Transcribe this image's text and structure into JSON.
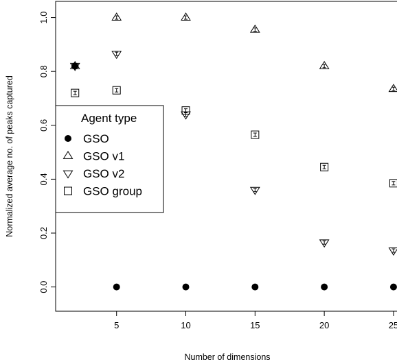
{
  "chart_data": {
    "type": "scatter",
    "xlabel": "Number of dimensions",
    "ylabel": "Normalized average no. of peaks captured",
    "x_ticks": [
      "5",
      "10",
      "15",
      "20",
      "25"
    ],
    "y_ticks": [
      "0.0",
      "0.2",
      "0.4",
      "0.6",
      "0.8",
      "1.0"
    ],
    "xlim": [
      0.6,
      25.4
    ],
    "ylim": [
      -0.09,
      1.06
    ],
    "grid": false,
    "legend": {
      "title": "Agent type",
      "placement": "left",
      "entries": [
        {
          "label": "GSO",
          "marker": "filled-circle"
        },
        {
          "label": "GSO v1",
          "marker": "triangle-up"
        },
        {
          "label": "GSO v2",
          "marker": "triangle-down"
        },
        {
          "label": "GSO group",
          "marker": "square"
        }
      ]
    },
    "series": [
      {
        "name": "GSO",
        "marker": "filled-circle",
        "x": [
          2,
          5,
          10,
          15,
          20,
          25
        ],
        "y": [
          0.82,
          0.0,
          0.0,
          0.0,
          0.0,
          0.0
        ]
      },
      {
        "name": "GSO v1",
        "marker": "triangle-up",
        "x": [
          2,
          5,
          10,
          15,
          20,
          25
        ],
        "y": [
          0.82,
          1.0,
          1.0,
          0.955,
          0.82,
          0.735
        ]
      },
      {
        "name": "GSO v2",
        "marker": "triangle-down",
        "x": [
          2,
          5,
          10,
          15,
          20,
          25
        ],
        "y": [
          0.82,
          0.865,
          0.64,
          0.36,
          0.165,
          0.135
        ]
      },
      {
        "name": "GSO group",
        "marker": "square",
        "x": [
          2,
          5,
          10,
          15,
          20,
          25
        ],
        "y": [
          0.72,
          0.73,
          0.655,
          0.565,
          0.445,
          0.385
        ]
      }
    ]
  }
}
